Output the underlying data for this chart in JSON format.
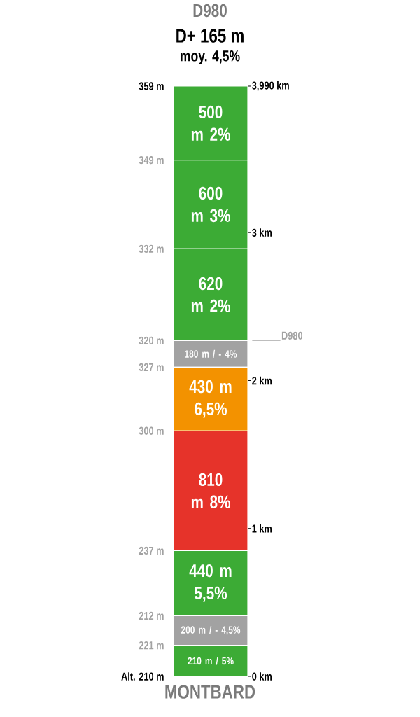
{
  "chart_data": {
    "type": "bar",
    "stacked": true,
    "title": "D980",
    "subtitle": "D+ 165 m",
    "xlabel": "MONTBARD",
    "annotations": [
      "moy. 4,5%",
      "Alt. 210 m",
      "221 m",
      "212 m",
      "237 m",
      "300 m",
      "327 m",
      "320 m",
      "332 m",
      "349 m",
      "359 m"
    ],
    "categories": [
      null
    ],
    "series": [
      {
        "color": "#3cab35",
        "values": [
          210
        ],
        "value_labels": [
          "210 m / 5%"
        ]
      },
      {
        "color": "#a2a2a2",
        "values": [
          200
        ],
        "value_labels": [
          "200 m / - 4,5%"
        ]
      },
      {
        "color": "#3cab35",
        "values": [
          440
        ],
        "value_labels": [
          "440 m 5,5%"
        ]
      },
      {
        "color": "#e6332a",
        "values": [
          810
        ],
        "value_labels": [
          "810 m 8%"
        ]
      },
      {
        "color": "#f39200",
        "values": [
          430
        ],
        "value_labels": [
          "430 m 6,5%"
        ]
      },
      {
        "color": "#a2a2a2",
        "values": [
          180
        ],
        "value_labels": [
          "180 m / - 4%"
        ]
      },
      {
        "color": "#3cab35",
        "values": [
          620
        ],
        "value_labels": [
          "620 m 2%"
        ]
      },
      {
        "color": "#3cab35",
        "values": [
          600
        ],
        "value_labels": [
          "600 m 3%"
        ]
      },
      {
        "color": "#3cab35",
        "values": [
          500
        ],
        "value_labels": [
          "500 m 2%"
        ]
      }
    ],
    "ylim": [
      0,
      3990
    ],
    "tick_labels": false,
    "ref_lines": [
      {
        "axis": "y",
        "value": 2270,
        "label": "D980",
        "color": "#a2a2a2"
      },
      {
        "axis": "y",
        "value": 0,
        "label": "0 km",
        "color": "#000000"
      },
      {
        "axis": "y",
        "value": 1000,
        "label": "1 km",
        "color": "#000000"
      },
      {
        "axis": "y",
        "value": 2000,
        "label": "2 km",
        "color": "#000000"
      },
      {
        "axis": "y",
        "value": 3000,
        "label": "3 km",
        "color": "#000000"
      },
      {
        "axis": "y",
        "value": 3990,
        "label": "3,990 km",
        "color": "#000000"
      }
    ]
  }
}
